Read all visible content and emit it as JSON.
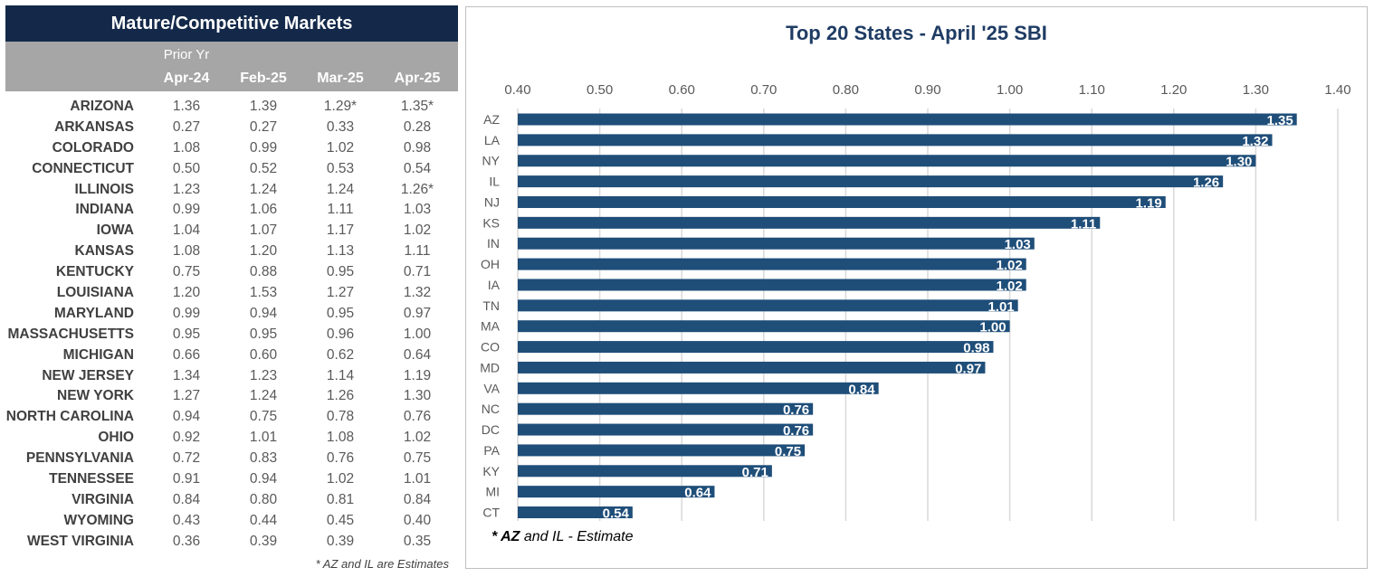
{
  "table": {
    "title": "Mature/Competitive Markets",
    "prior_label": "Prior Yr",
    "columns": [
      "Apr-24",
      "Feb-25",
      "Mar-25",
      "Apr-25"
    ],
    "rows": [
      {
        "state": "ARIZONA",
        "values": [
          "1.36",
          "1.39",
          "1.29*",
          "1.35*"
        ]
      },
      {
        "state": "ARKANSAS",
        "values": [
          "0.27",
          "0.27",
          "0.33",
          "0.28"
        ]
      },
      {
        "state": "COLORADO",
        "values": [
          "1.08",
          "0.99",
          "1.02",
          "0.98"
        ]
      },
      {
        "state": "CONNECTICUT",
        "values": [
          "0.50",
          "0.52",
          "0.53",
          "0.54"
        ]
      },
      {
        "state": "ILLINOIS",
        "values": [
          "1.23",
          "1.24",
          "1.24",
          "1.26*"
        ]
      },
      {
        "state": "INDIANA",
        "values": [
          "0.99",
          "1.06",
          "1.11",
          "1.03"
        ]
      },
      {
        "state": "IOWA",
        "values": [
          "1.04",
          "1.07",
          "1.17",
          "1.02"
        ]
      },
      {
        "state": "KANSAS",
        "values": [
          "1.08",
          "1.20",
          "1.13",
          "1.11"
        ]
      },
      {
        "state": "KENTUCKY",
        "values": [
          "0.75",
          "0.88",
          "0.95",
          "0.71"
        ]
      },
      {
        "state": "LOUISIANA",
        "values": [
          "1.20",
          "1.53",
          "1.27",
          "1.32"
        ]
      },
      {
        "state": "MARYLAND",
        "values": [
          "0.99",
          "0.94",
          "0.95",
          "0.97"
        ]
      },
      {
        "state": "MASSACHUSETTS",
        "values": [
          "0.95",
          "0.95",
          "0.96",
          "1.00"
        ]
      },
      {
        "state": "MICHIGAN",
        "values": [
          "0.66",
          "0.60",
          "0.62",
          "0.64"
        ]
      },
      {
        "state": "NEW JERSEY",
        "values": [
          "1.34",
          "1.23",
          "1.14",
          "1.19"
        ]
      },
      {
        "state": "NEW YORK",
        "values": [
          "1.27",
          "1.24",
          "1.26",
          "1.30"
        ]
      },
      {
        "state": "NORTH CAROLINA",
        "values": [
          "0.94",
          "0.75",
          "0.78",
          "0.76"
        ]
      },
      {
        "state": "OHIO",
        "values": [
          "0.92",
          "1.01",
          "1.08",
          "1.02"
        ]
      },
      {
        "state": "PENNSYLVANIA",
        "values": [
          "0.72",
          "0.83",
          "0.76",
          "0.75"
        ]
      },
      {
        "state": "TENNESSEE",
        "values": [
          "0.91",
          "0.94",
          "1.02",
          "1.01"
        ]
      },
      {
        "state": "VIRGINIA",
        "values": [
          "0.84",
          "0.80",
          "0.81",
          "0.84"
        ]
      },
      {
        "state": "WYOMING",
        "values": [
          "0.43",
          "0.44",
          "0.45",
          "0.40"
        ]
      },
      {
        "state": "WEST VIRGINIA",
        "values": [
          "0.36",
          "0.39",
          "0.39",
          "0.35"
        ]
      }
    ],
    "footnote": "* AZ and IL are Estimates"
  },
  "chart_footnote": {
    "marker": "* AZ",
    "text": "and IL - Estimate"
  },
  "colors": {
    "header_navy": "#14294a",
    "header_gray": "#a6a6a6",
    "bar": "#1f4e79",
    "title": "#1f3c64",
    "grid": "#d9d9d9"
  },
  "chart_data": {
    "type": "bar",
    "orientation": "horizontal",
    "title": "Top 20 States -  April '25 SBI",
    "categories": [
      "AZ",
      "LA",
      "NY",
      "IL",
      "NJ",
      "KS",
      "IN",
      "OH",
      "IA",
      "TN",
      "MA",
      "CO",
      "MD",
      "VA",
      "NC",
      "DC",
      "PA",
      "KY",
      "MI",
      "CT"
    ],
    "values": [
      1.35,
      1.32,
      1.3,
      1.26,
      1.19,
      1.11,
      1.03,
      1.02,
      1.02,
      1.01,
      1.0,
      0.98,
      0.97,
      0.84,
      0.76,
      0.76,
      0.75,
      0.71,
      0.64,
      0.54
    ],
    "xlim": [
      0.4,
      1.4
    ],
    "xticks": [
      "0.40",
      "0.50",
      "0.60",
      "0.70",
      "0.80",
      "0.90",
      "1.00",
      "1.10",
      "1.20",
      "1.30",
      "1.40"
    ],
    "xaxis_position": "top",
    "grid": "vertical",
    "legend": "none",
    "data_labels": true
  }
}
